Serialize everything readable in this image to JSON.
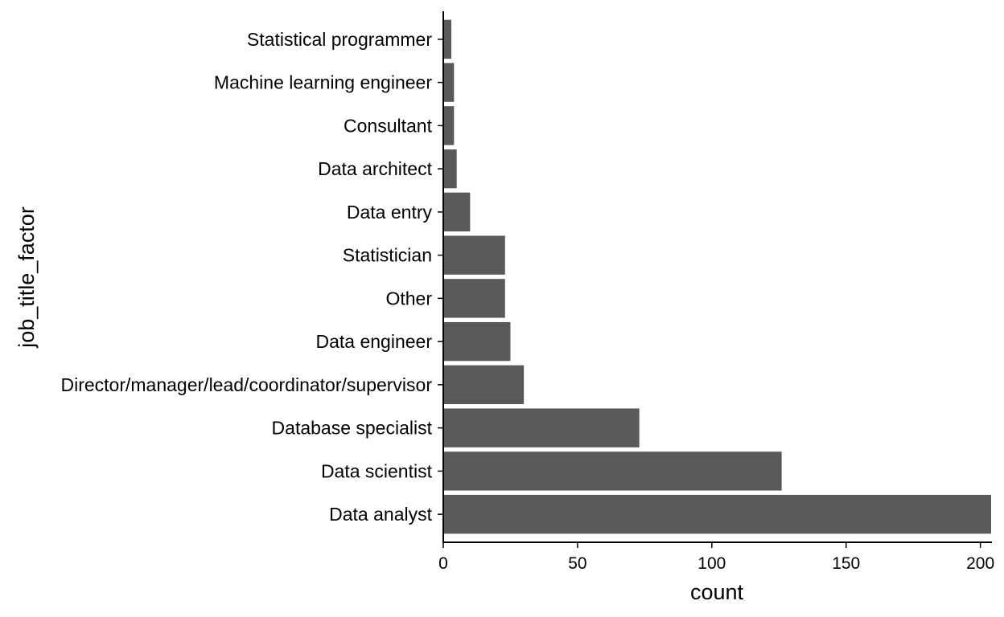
{
  "chart_data": {
    "type": "bar",
    "orientation": "horizontal",
    "title": "",
    "xlabel": "count",
    "ylabel": "job_title_factor",
    "categories": [
      "Statistical programmer",
      "Machine learning engineer",
      "Consultant",
      "Data architect",
      "Data entry",
      "Statistician",
      "Other",
      "Data engineer",
      "Director/manager/lead/coordinator/supervisor",
      "Database specialist",
      "Data scientist",
      "Data analyst"
    ],
    "values": [
      3,
      4,
      4,
      5,
      10,
      23,
      23,
      25,
      30,
      73,
      126,
      204
    ],
    "xlim": [
      0,
      204
    ],
    "xticks": [
      0,
      50,
      100,
      150,
      200
    ],
    "xtick_labels": [
      "0",
      "50",
      "100",
      "150",
      "200"
    ],
    "grid": false,
    "legend": "none",
    "bar_color": "#595959"
  }
}
